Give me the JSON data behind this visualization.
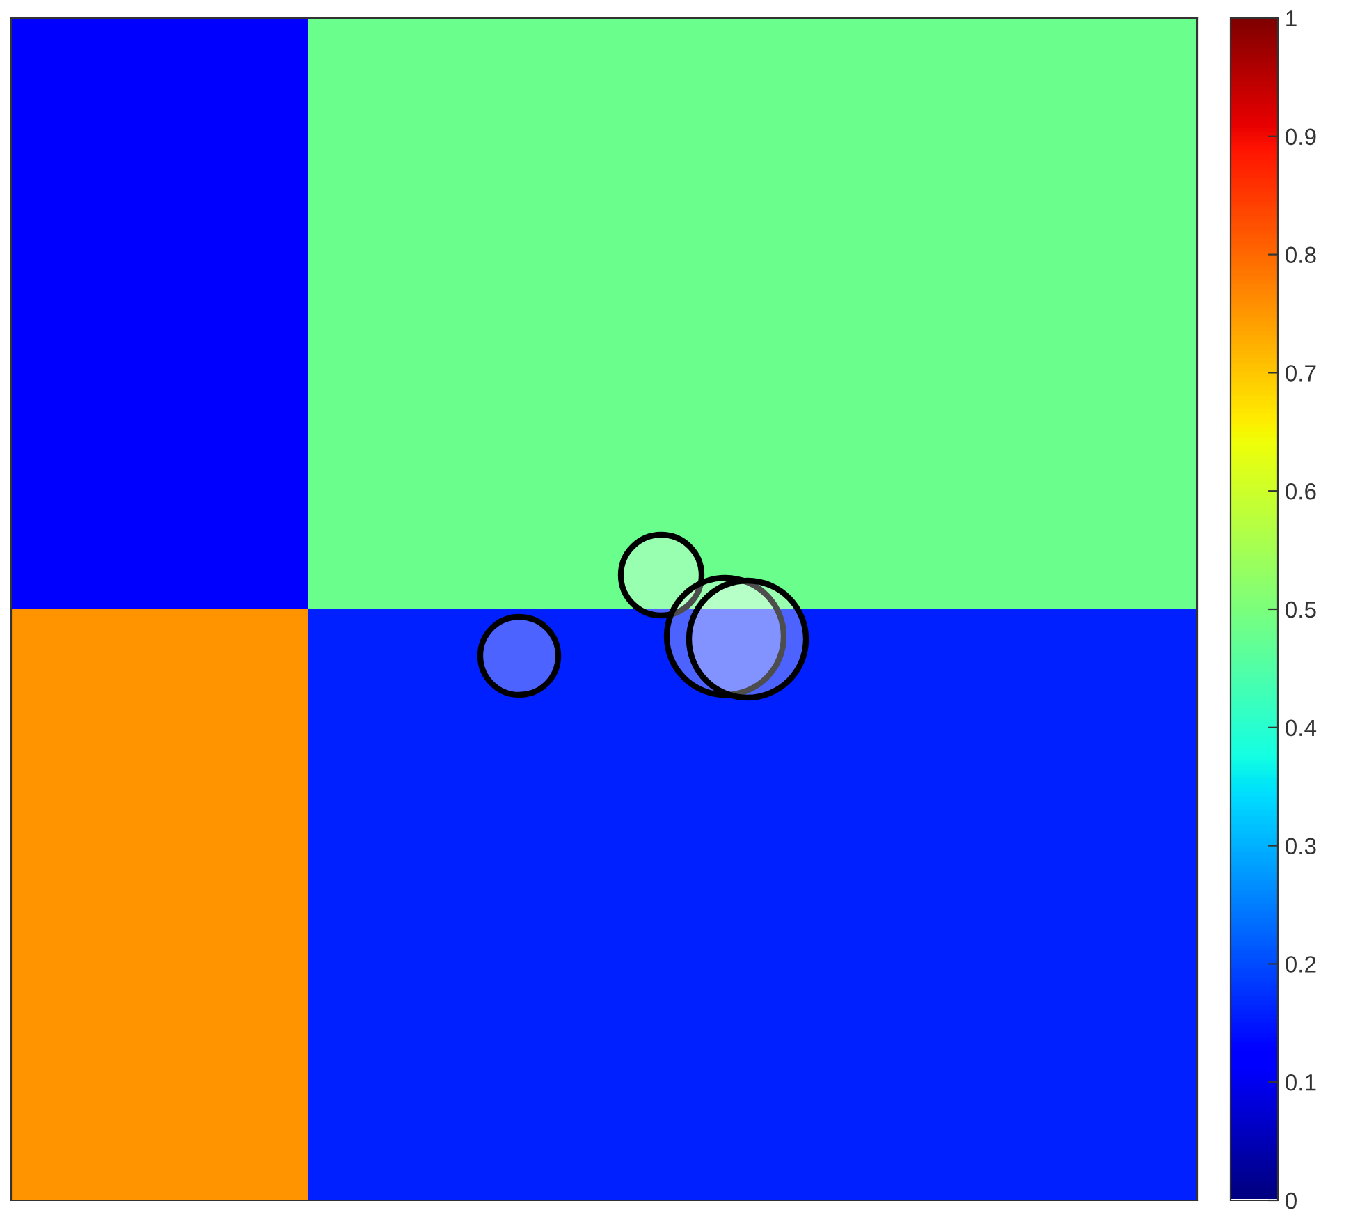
{
  "chart_data": {
    "type": "heatmap",
    "categories": [
      null,
      null,
      null,
      null
    ],
    "y_categories": [
      null,
      null
    ],
    "cells": [
      [
        0.12,
        0.48,
        0.48,
        0.48
      ],
      [
        0.75,
        0.16,
        0.16,
        0.16
      ]
    ],
    "clim": [
      0,
      1
    ],
    "cticks": [
      0,
      0.1,
      0.2,
      0.3,
      0.4,
      0.5,
      0.6,
      0.7,
      0.8,
      0.9,
      1
    ]
  }
}
